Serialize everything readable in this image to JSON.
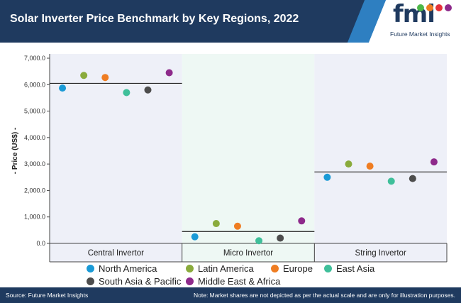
{
  "header": {
    "title": "Solar Inverter Price Benchmark by Key Regions, 2022"
  },
  "logo": {
    "wordmark": "fmi",
    "tagline": "Future Market Insights",
    "colors": [
      "#4db848",
      "#ef7d22",
      "#e5323b",
      "#8e2a8b"
    ]
  },
  "footer": {
    "source": "Source: Future Market Insights",
    "note": "Note: Market shares are not depicted as per the actual scale and are only for illustration purposes."
  },
  "chart_data": {
    "type": "scatter",
    "title": "Solar Inverter Price Benchmark by Key Regions, 2022",
    "ylabel": "- Price (US$) -",
    "xlabel": "",
    "ylim": [
      0,
      7000
    ],
    "yticks": [
      "0.0",
      "1,000.0",
      "2,000.0",
      "3,000.0",
      "4,000.0",
      "5,000.0",
      "6,000.0",
      "7,000.0"
    ],
    "grid": false,
    "legend_position": "bottom",
    "categories": [
      "Central Invertor",
      "Micro Invertor",
      "String Invertor"
    ],
    "category_backgrounds": [
      "#eef0f8",
      "#eef8f4",
      "#eef0f8"
    ],
    "benchmark_lines": [
      6050,
      450,
      2700
    ],
    "series": [
      {
        "name": "North America",
        "color": "#1a9ad6",
        "values": [
          5870,
          250,
          2500
        ]
      },
      {
        "name": "Latin America",
        "color": "#8aab3c",
        "values": [
          6350,
          750,
          3000
        ]
      },
      {
        "name": "Europe",
        "color": "#ef7d22",
        "values": [
          6270,
          650,
          2920
        ]
      },
      {
        "name": "East Asia",
        "color": "#3fbf9a",
        "values": [
          5700,
          100,
          2350
        ]
      },
      {
        "name": "South Asia & Pacific",
        "color": "#4d4d4d",
        "values": [
          5800,
          200,
          2450
        ]
      },
      {
        "name": "Middle East & Africa",
        "color": "#8e2a8b",
        "values": [
          6450,
          850,
          3080
        ]
      }
    ]
  }
}
